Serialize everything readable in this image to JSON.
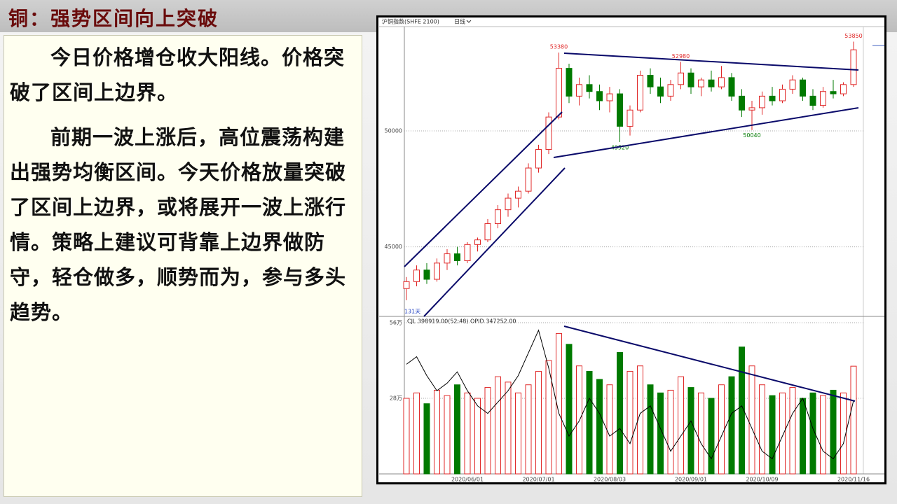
{
  "title": "铜：强势区间向上突破",
  "paragraphs": [
    "今日价格增仓收大阳线。价格突破了区间上边界。",
    "前期一波上涨后，高位震荡构建出强势均衡区间。今天价格放量突破了区间上边界，或将展开一波上涨行情。策略上建议可背靠上边界做防守，轻仓做多，顺势而为，参与多头趋势。"
  ],
  "chart_data": {
    "type": "candlestick",
    "header": "沪铜指数(SHFE 2100)",
    "period": "日线",
    "count_label": "131天",
    "up_color": "#e02828",
    "down_color": "#007a00",
    "categories": [
      null,
      null,
      null,
      null,
      null,
      null,
      "2020/06/01",
      null,
      null,
      null,
      null,
      null,
      null,
      "2020/07/01",
      null,
      null,
      null,
      null,
      null,
      null,
      "2020/08/03",
      null,
      null,
      null,
      null,
      null,
      null,
      null,
      "2020/09/01",
      null,
      null,
      null,
      null,
      null,
      null,
      "2020/10/09",
      null,
      null,
      null,
      null,
      null,
      null,
      null,
      null,
      "2020/11/16"
    ],
    "ohlc": [
      [
        43200,
        43700,
        42700,
        43500
      ],
      [
        43500,
        44200,
        43300,
        44000
      ],
      [
        44000,
        44300,
        43400,
        43600
      ],
      [
        43600,
        44500,
        43500,
        44300
      ],
      [
        44300,
        44900,
        44000,
        44700
      ],
      [
        44700,
        45000,
        44200,
        44400
      ],
      [
        44400,
        45200,
        44300,
        45100
      ],
      [
        45100,
        45400,
        44800,
        45300
      ],
      [
        45300,
        46200,
        45200,
        46000
      ],
      [
        46000,
        46800,
        45800,
        46600
      ],
      [
        46600,
        47300,
        46300,
        47100
      ],
      [
        47100,
        47600,
        46700,
        47400
      ],
      [
        47400,
        48600,
        47300,
        48400
      ],
      [
        48400,
        49400,
        48200,
        49200
      ],
      [
        49200,
        50800,
        49000,
        50600
      ],
      [
        50600,
        53380,
        50500,
        52700
      ],
      [
        52700,
        52900,
        51200,
        51500
      ],
      [
        51500,
        52300,
        51100,
        52000
      ],
      [
        52000,
        52400,
        51400,
        51700
      ],
      [
        51700,
        52000,
        50900,
        51300
      ],
      [
        51300,
        51900,
        50800,
        51600
      ],
      [
        51600,
        51800,
        49520,
        50200
      ],
      [
        50200,
        51100,
        49800,
        50900
      ],
      [
        50900,
        52600,
        50800,
        52400
      ],
      [
        52400,
        52700,
        51600,
        51900
      ],
      [
        51900,
        52300,
        51200,
        51500
      ],
      [
        51500,
        52200,
        51300,
        52000
      ],
      [
        52000,
        52980,
        51800,
        52500
      ],
      [
        52500,
        52700,
        51600,
        51900
      ],
      [
        51900,
        52300,
        51500,
        52200
      ],
      [
        52200,
        52600,
        51700,
        51900
      ],
      [
        51900,
        52800,
        51800,
        52300
      ],
      [
        52300,
        52500,
        51300,
        51500
      ],
      [
        51500,
        51800,
        50600,
        50900
      ],
      [
        50900,
        51300,
        50040,
        51000
      ],
      [
        51000,
        51700,
        50700,
        51500
      ],
      [
        51500,
        51900,
        51100,
        51300
      ],
      [
        51300,
        52000,
        51200,
        51800
      ],
      [
        51800,
        52400,
        51600,
        52200
      ],
      [
        52200,
        52300,
        51300,
        51500
      ],
      [
        51500,
        51800,
        50900,
        51100
      ],
      [
        51100,
        51900,
        51000,
        51700
      ],
      [
        51700,
        52200,
        51400,
        51600
      ],
      [
        51600,
        52100,
        51500,
        52000
      ],
      [
        52000,
        53850,
        51900,
        53500
      ]
    ],
    "ylim": [
      42000,
      54500
    ],
    "yticks": [
      45000,
      50000
    ],
    "volume": {
      "label": "CJL 398919.00(52:48) OPID 347252.00",
      "ylim": [
        0,
        560000
      ],
      "yticks": [
        {
          "value": 280000,
          "label": "28万"
        },
        {
          "value": 560000,
          "label": "56万"
        }
      ],
      "values": [
        280000,
        300000,
        260000,
        310000,
        290000,
        330000,
        300000,
        280000,
        320000,
        360000,
        340000,
        300000,
        330000,
        380000,
        420000,
        520000,
        480000,
        400000,
        380000,
        350000,
        330000,
        450000,
        380000,
        400000,
        330000,
        300000,
        310000,
        360000,
        320000,
        300000,
        280000,
        330000,
        360000,
        470000,
        400000,
        330000,
        290000,
        300000,
        320000,
        280000,
        300000,
        290000,
        310000,
        300000,
        398919
      ],
      "oi": {
        "color": "#000000",
        "ylim": [
          250000,
          450000
        ],
        "values": [
          395000,
          405000,
          380000,
          360000,
          370000,
          385000,
          360000,
          340000,
          330000,
          345000,
          360000,
          380000,
          410000,
          440000,
          390000,
          330000,
          300000,
          320000,
          350000,
          330000,
          300000,
          310000,
          290000,
          330000,
          340000,
          310000,
          280000,
          300000,
          320000,
          290000,
          270000,
          300000,
          330000,
          340000,
          310000,
          280000,
          270000,
          300000,
          330000,
          350000,
          310000,
          280000,
          270000,
          290000,
          347252
        ]
      }
    }
  }
}
